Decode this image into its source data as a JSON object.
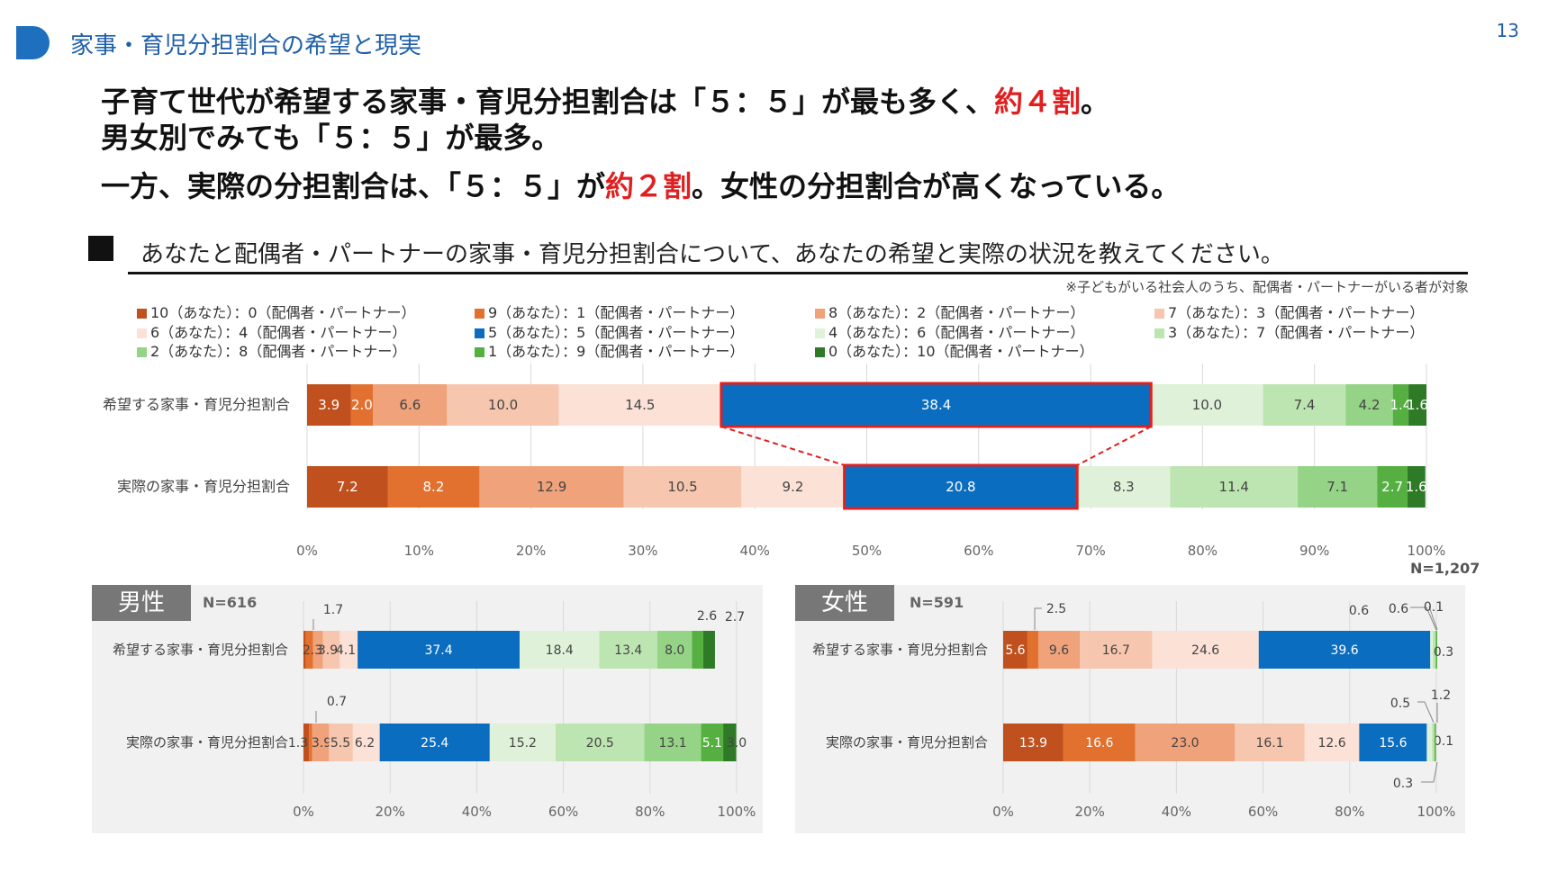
{
  "header": {
    "title": "家事・育児分担割合の希望と現実",
    "page_number": "13"
  },
  "headline": {
    "line1_before": "子育て世代が希望する家事・育児分担割合は「５：５」が最も多く、",
    "line1_highlight": "約４割",
    "line1_after": "。",
    "line2": "男女別でみても「５：５」が最多。",
    "line3_before": "一方、実際の分担割合は、「５：５」が",
    "line3_highlight": "約２割",
    "line3_after": "。女性の分担割合が高くなっている。"
  },
  "question": "あなたと配偶者・パートナーの家事・育児分担割合について、あなたの希望と実際の状況を教えてください。",
  "note": "※子どもがいる社会人のうち、配偶者・パートナーがいる者が対象",
  "legend": [
    {
      "label": "10（あなた）：0（配偶者・パートナー）",
      "color": "#c0501e"
    },
    {
      "label": "9（あなた）：1（配偶者・パートナー）",
      "color": "#e2702f"
    },
    {
      "label": "8（あなた）：2（配偶者・パートナー）",
      "color": "#f0a27a"
    },
    {
      "label": "7（あなた）：3（配偶者・パートナー）",
      "color": "#f7c6ae"
    },
    {
      "label": "6（あなた）：4（配偶者・パートナー）",
      "color": "#fbe1d6"
    },
    {
      "label": "5（あなた）：5（配偶者・パートナー）",
      "color": "#0b6dbf"
    },
    {
      "label": "4（あなた）：6（配偶者・パートナー）",
      "color": "#dff2d9"
    },
    {
      "label": "3（あなた）：7（配偶者・パートナー）",
      "color": "#bde5b2"
    },
    {
      "label": "2（あなた）：8（配偶者・パートナー）",
      "color": "#95d386"
    },
    {
      "label": "1（あなた）：9（配偶者・パートナー）",
      "color": "#55b041"
    },
    {
      "label": "0（あなた）：10（配偶者・パートナー）",
      "color": "#2e7a26"
    }
  ],
  "chart_data": [
    {
      "type": "bar",
      "orientation": "horizontal-stacked-100",
      "categories": [
        "希望する家事・育児分担割合",
        "実際の家事・育児分担割合"
      ],
      "series_values": [
        [
          3.9,
          2.0,
          6.6,
          10.0,
          14.5,
          38.4,
          10.0,
          7.4,
          4.2,
          1.4,
          1.6
        ],
        [
          7.2,
          8.2,
          12.9,
          10.5,
          9.2,
          20.8,
          8.3,
          11.4,
          7.1,
          2.7,
          1.6
        ]
      ],
      "x_ticks": [
        "0%",
        "10%",
        "20%",
        "30%",
        "40%",
        "50%",
        "60%",
        "70%",
        "80%",
        "90%",
        "100%"
      ],
      "xlim": [
        0,
        100
      ],
      "n_label": "N=1,207",
      "highlight_index": 5
    },
    {
      "type": "bar",
      "orientation": "horizontal-stacked-100",
      "panel_label": "男性",
      "n_label": "N=616",
      "categories": [
        "希望する家事・育児分担割合",
        "実際の家事・育児分担割合"
      ],
      "series_values": [
        [
          0.5,
          1.7,
          2.3,
          3.9,
          4.1,
          37.4,
          18.4,
          13.4,
          8.0,
          2.6,
          2.7
        ],
        [
          1.3,
          0.7,
          3.9,
          5.5,
          6.2,
          25.4,
          15.2,
          20.5,
          13.1,
          5.1,
          3.0
        ]
      ],
      "display_labels": [
        [
          "",
          "1.7",
          "2.3",
          "3.9",
          "4.1",
          "37.4",
          "18.4",
          "13.4",
          "8.0",
          "2.6",
          "2.7"
        ],
        [
          "1.3",
          "0.7",
          "3.9",
          "5.5",
          "6.2",
          "25.4",
          "15.2",
          "20.5",
          "13.1",
          "5.1",
          "3.0"
        ]
      ],
      "x_ticks": [
        "0%",
        "20%",
        "40%",
        "60%",
        "80%",
        "100%"
      ],
      "xlim": [
        0,
        100
      ]
    },
    {
      "type": "bar",
      "orientation": "horizontal-stacked-100",
      "panel_label": "女性",
      "n_label": "N=591",
      "categories": [
        "希望する家事・育児分担割合",
        "実際の家事・育児分担割合"
      ],
      "series_values": [
        [
          5.6,
          2.5,
          9.6,
          16.7,
          24.6,
          39.6,
          0.6,
          0.6,
          0.1,
          0.3,
          0.0
        ],
        [
          13.9,
          16.6,
          23.0,
          16.1,
          12.6,
          15.6,
          1.2,
          0.5,
          0.1,
          0.3,
          0.0
        ]
      ],
      "display_labels": [
        [
          "5.6",
          "2.5",
          "9.6",
          "16.7",
          "24.6",
          "39.6",
          "0.6",
          "0.6",
          "0.1",
          "0.3",
          ""
        ],
        [
          "13.9",
          "16.6",
          "23.0",
          "16.1",
          "12.6",
          "15.6",
          "1.2",
          "0.5",
          "0.1",
          "0.3",
          ""
        ]
      ],
      "x_ticks": [
        "0%",
        "20%",
        "40%",
        "60%",
        "80%",
        "100%"
      ],
      "xlim": [
        0,
        100
      ]
    }
  ]
}
